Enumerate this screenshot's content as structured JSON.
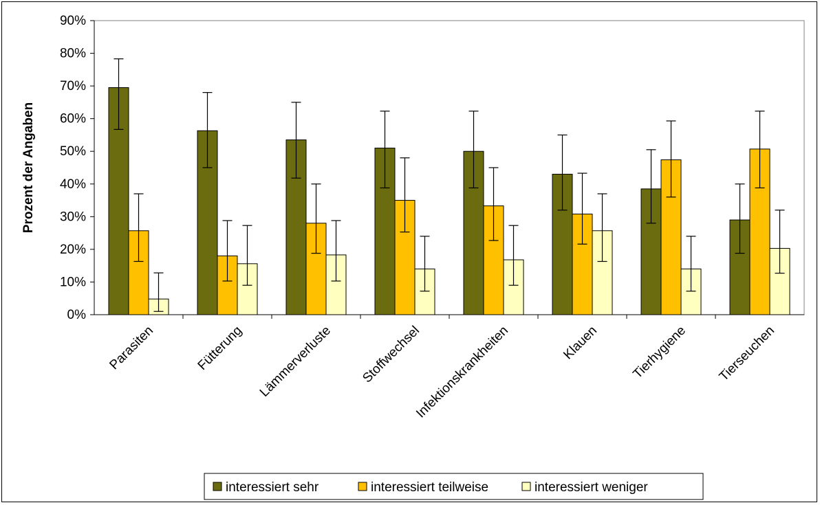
{
  "chart_data": {
    "type": "bar",
    "title": "",
    "xlabel": "",
    "ylabel": "Prozent der Angaben",
    "ylim": [
      0,
      90
    ],
    "yticks": [
      0,
      10,
      20,
      30,
      40,
      50,
      60,
      70,
      80,
      90
    ],
    "ytick_labels": [
      "0%",
      "10%",
      "20%",
      "30%",
      "40%",
      "50%",
      "60%",
      "70%",
      "80%",
      "90%"
    ],
    "categories": [
      "Parasiten",
      "Fütterung",
      "Lämmerverluste",
      "Stoffwechsel",
      "Infektionskrankheiten",
      "Klauen",
      "Tierhygiene",
      "Tierseuchen"
    ],
    "series": [
      {
        "name": "interessiert sehr",
        "color": "#6b6b0f",
        "values": [
          69.5,
          56.3,
          53.5,
          51.0,
          50.0,
          43.0,
          38.5,
          29.0
        ],
        "err_low": [
          56.7,
          45.0,
          41.8,
          38.8,
          38.8,
          32.0,
          28.0,
          18.8
        ],
        "err_high": [
          78.3,
          68.0,
          65.0,
          62.3,
          62.3,
          55.0,
          50.5,
          40.0
        ]
      },
      {
        "name": "interessiert teilweise",
        "color": "#ffc000",
        "values": [
          25.7,
          18.0,
          28.0,
          35.0,
          33.3,
          30.8,
          47.4,
          50.7
        ],
        "err_low": [
          16.3,
          10.3,
          18.8,
          25.3,
          22.7,
          21.6,
          36.0,
          38.8
        ],
        "err_high": [
          37.0,
          28.8,
          40.0,
          48.0,
          45.0,
          43.3,
          59.3,
          62.3
        ]
      },
      {
        "name": "interessiert weniger",
        "color": "#ffffc0",
        "values": [
          4.8,
          15.6,
          18.3,
          14.0,
          16.8,
          25.7,
          14.0,
          20.3
        ],
        "err_low": [
          1.0,
          9.0,
          10.3,
          7.2,
          9.0,
          16.3,
          7.2,
          12.7
        ],
        "err_high": [
          12.8,
          27.3,
          28.8,
          24.0,
          27.3,
          37.0,
          24.0,
          32.0
        ]
      }
    ],
    "grid": false,
    "error_bars": true,
    "legend_position": "bottom"
  }
}
